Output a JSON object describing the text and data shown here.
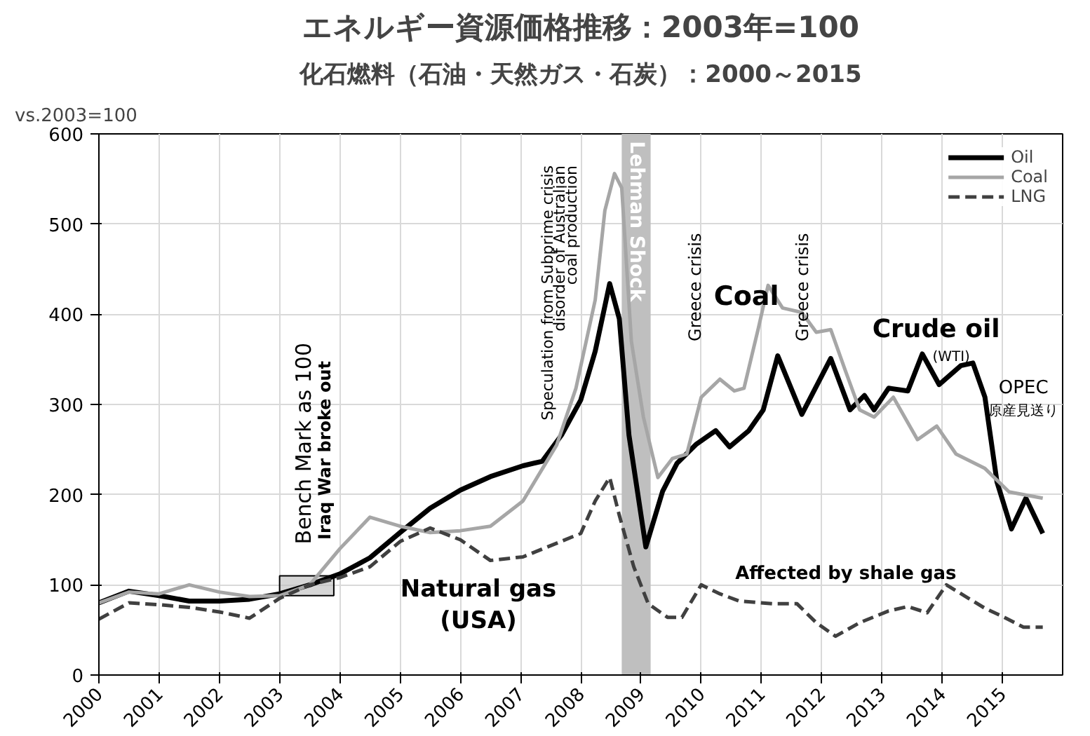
{
  "chart_data": {
    "type": "line",
    "title": "エネルギー資源価格推移：2003年=100",
    "subtitle": "化石燃料（石油・天然ガス・石炭）：2000～2015",
    "ylabel": "vs.2003=100",
    "xlim": [
      2000,
      2016
    ],
    "xticks": [
      2000,
      2001,
      2002,
      2003,
      2004,
      2005,
      2006,
      2007,
      2008,
      2009,
      2010,
      2011,
      2012,
      2013,
      2014,
      2015
    ],
    "ylim": [
      0,
      600
    ],
    "yticks": [
      0,
      100,
      200,
      300,
      400,
      500,
      600
    ],
    "grid": true,
    "legend": "top right",
    "series": [
      {
        "name": "Oil",
        "color": "#000000",
        "line_style": "solid",
        "x": [
          2000,
          2000.5,
          2001,
          2001.5,
          2002,
          2002.5,
          2003,
          2003.5,
          2004,
          2004.5,
          2005,
          2005.5,
          2006,
          2006.5,
          2007.04,
          2007.36,
          2007.68,
          2008.0,
          2008.24,
          2008.48,
          2008.64,
          2008.8,
          2009.08,
          2009.36,
          2009.6,
          2009.92,
          2010.24,
          2010.47,
          2010.79,
          2011.03,
          2011.27,
          2011.67,
          2012.15,
          2012.47,
          2012.71,
          2012.87,
          2013.11,
          2013.43,
          2013.67,
          2013.95,
          2014.31,
          2014.51,
          2014.71,
          2014.91,
          2015.15,
          2015.39,
          2015.67
        ],
        "values": [
          80,
          93,
          88,
          82,
          82,
          84,
          90,
          100,
          112,
          130,
          158,
          185,
          205,
          220,
          232,
          237,
          266,
          305,
          359,
          434,
          395,
          266,
          142,
          204,
          235,
          256,
          271,
          253,
          271,
          294,
          354,
          289,
          351,
          294,
          310,
          294,
          318,
          315,
          356,
          322,
          343,
          346,
          308,
          214,
          162,
          196,
          157
        ]
      },
      {
        "name": "Coal",
        "color": "#a6a6a6",
        "line_style": "solid",
        "x": [
          2000,
          2000.5,
          2001,
          2001.5,
          2002,
          2002.5,
          2003,
          2003.5,
          2004,
          2004.5,
          2005,
          2005.5,
          2006,
          2006.5,
          2007.04,
          2007.6,
          2007.92,
          2008.24,
          2008.4,
          2008.56,
          2008.68,
          2008.84,
          2009.04,
          2009.28,
          2009.52,
          2009.76,
          2010.0,
          2010.31,
          2010.55,
          2010.71,
          2010.95,
          2011.11,
          2011.35,
          2011.67,
          2011.91,
          2012.15,
          2012.39,
          2012.63,
          2012.87,
          2013.19,
          2013.59,
          2013.91,
          2014.23,
          2014.71,
          2015.11,
          2015.67
        ],
        "values": [
          80,
          92,
          90,
          100,
          92,
          87,
          88,
          100,
          140,
          175,
          165,
          158,
          160,
          165,
          193,
          255,
          318,
          416,
          515,
          556,
          540,
          370,
          286,
          219,
          240,
          245,
          308,
          328,
          315,
          318,
          385,
          432,
          407,
          402,
          380,
          383,
          338,
          294,
          286,
          308,
          261,
          276,
          245,
          229,
          203,
          196
        ]
      },
      {
        "name": "LNG",
        "color": "#404040",
        "line_style": "dashed",
        "x": [
          2000,
          2000.5,
          2001,
          2001.5,
          2002,
          2002.5,
          2003,
          2003.5,
          2004,
          2004.5,
          2005,
          2005.5,
          2006,
          2006.5,
          2007.04,
          2008.0,
          2008.24,
          2008.48,
          2008.64,
          2008.88,
          2009.12,
          2009.44,
          2009.68,
          2010.0,
          2010.31,
          2010.63,
          2011.19,
          2011.59,
          2011.91,
          2012.23,
          2012.63,
          2013.11,
          2013.43,
          2013.75,
          2014.07,
          2014.39,
          2014.71,
          2015.03,
          2015.35,
          2015.67
        ],
        "values": [
          62,
          80,
          78,
          75,
          70,
          63,
          85,
          100,
          108,
          120,
          148,
          163,
          150,
          127,
          131,
          157,
          193,
          219,
          177,
          120,
          79,
          64,
          64,
          100,
          90,
          82,
          79,
          79,
          58,
          43,
          58,
          71,
          76,
          69,
          100,
          87,
          74,
          64,
          53,
          53
        ]
      }
    ],
    "bands": [
      {
        "axis": "x",
        "from": 2008.68,
        "to": 2009.16,
        "label": "Lehman Shock",
        "color": "#bfbfbf"
      }
    ],
    "annotations": [
      "Bench  Mark as 100",
      "Iraq War broke out",
      "Speculation from Subprime crisis",
      "disorder of Australian",
      "coal production",
      "Greece crisis",
      "Greece crisis",
      "Coal",
      "Crude oil",
      "(WTI)",
      "OPEC",
      "原産見送り",
      "Natural gas",
      "(USA)",
      "Affected by shale gas"
    ]
  }
}
